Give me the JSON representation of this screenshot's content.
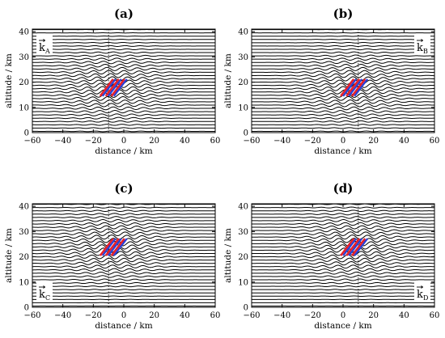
{
  "figure": {
    "panels": [
      {
        "id": "a",
        "tag": "(a)",
        "wave_vector_sub": "A",
        "wave_vector_corner": "top-left",
        "packet_center_km": [
          -7,
          18
        ]
      },
      {
        "id": "b",
        "tag": "(b)",
        "wave_vector_sub": "B",
        "wave_vector_corner": "top-right",
        "packet_center_km": [
          7,
          18
        ]
      },
      {
        "id": "c",
        "tag": "(c)",
        "wave_vector_sub": "C",
        "wave_vector_corner": "bottom-left",
        "packet_center_km": [
          -7,
          24
        ]
      },
      {
        "id": "d",
        "tag": "(d)",
        "wave_vector_sub": "D",
        "wave_vector_corner": "bottom-right",
        "packet_center_km": [
          7,
          24
        ]
      }
    ],
    "wave_vector_symbol": "k",
    "xlabel": "distance / km",
    "ylabel": "altitude / km",
    "xlim": [
      -60,
      60
    ],
    "ylim": [
      0,
      41
    ],
    "xticks": [
      "−60",
      "−40",
      "−20",
      "0",
      "20",
      "40",
      "60"
    ],
    "yticks": [
      "0",
      "10",
      "20",
      "30",
      "40"
    ],
    "vertical_reference_line_km": {
      "a": -10,
      "b": 10,
      "c": -10,
      "d": 10
    },
    "colors": {
      "isolines": "#000000",
      "phase_red": "#e8202a",
      "phase_blue": "#2a3fd8",
      "frame": "#000000"
    }
  }
}
